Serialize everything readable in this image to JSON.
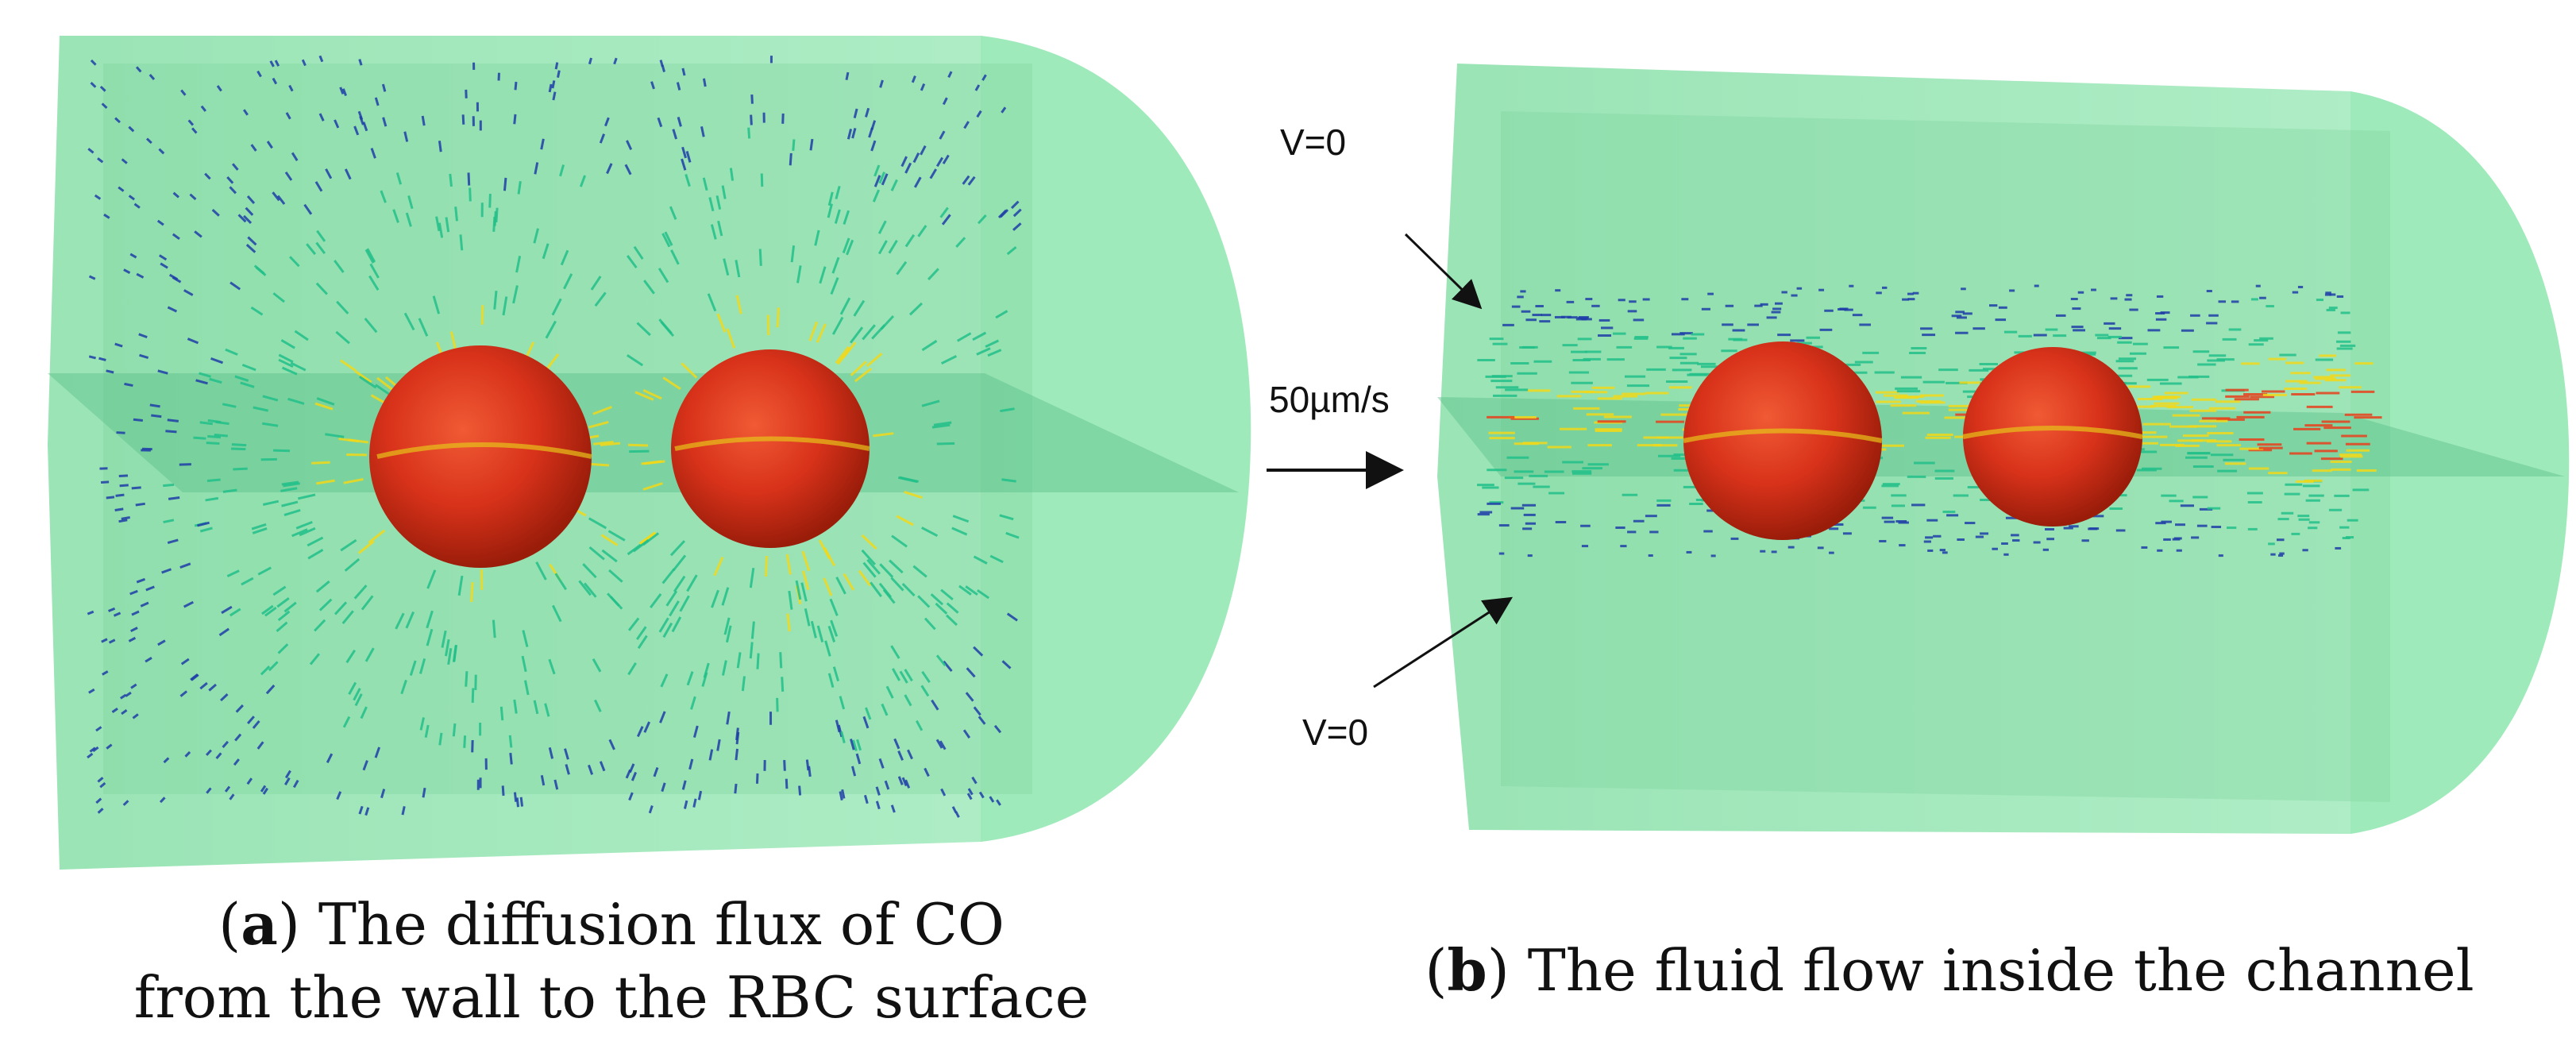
{
  "panels": [
    {
      "id": "a",
      "tag_letter": "a",
      "caption_line1": "The diffusion flux of CO",
      "caption_line2": "from the wall to the RBC surface"
    },
    {
      "id": "b",
      "tag_letter": "b",
      "caption_line1": "The fluid flow inside the channel"
    }
  ],
  "annotations": {
    "top_boundary": "V=0",
    "bottom_boundary": "V=0",
    "inlet_velocity": "50µm/s"
  },
  "colors": {
    "channel": "#8fe3b0",
    "rbc": "#d8321a",
    "vector_low": "#1f3ea8",
    "vector_mid": "#22c08a",
    "vector_high": "#f2d91a",
    "vector_peak": "#e8401c"
  }
}
